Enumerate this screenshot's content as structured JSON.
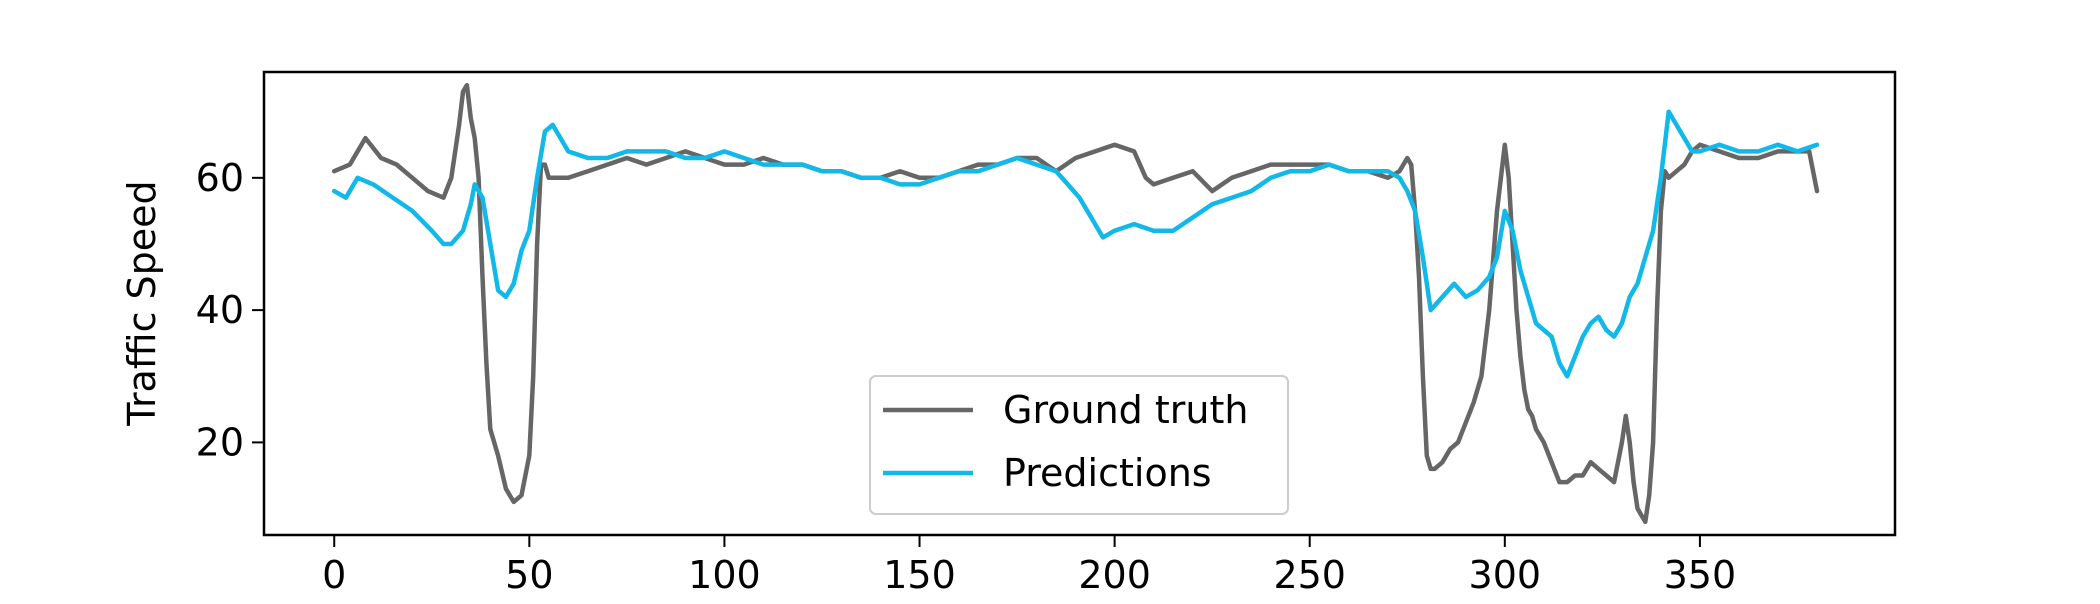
{
  "chart_data": {
    "type": "line",
    "title": "",
    "xlabel": "",
    "ylabel": "Traffic Speed",
    "xlim": [
      -18,
      400
    ],
    "ylim": [
      6,
      76
    ],
    "xticks": [
      0,
      50,
      100,
      150,
      200,
      250,
      300,
      350
    ],
    "yticks": [
      20,
      40,
      60
    ],
    "grid": false,
    "legend": {
      "placement": "lower center"
    },
    "series": [
      {
        "name": "Ground truth",
        "color": "#666666",
        "x": [
          0,
          4,
          8,
          12,
          16,
          20,
          24,
          28,
          30,
          32,
          33,
          34,
          35,
          36,
          37,
          38,
          39,
          40,
          42,
          44,
          46,
          48,
          50,
          51,
          52,
          53,
          54,
          55,
          56,
          60,
          65,
          70,
          75,
          80,
          85,
          90,
          95,
          100,
          105,
          110,
          115,
          120,
          125,
          130,
          135,
          140,
          145,
          150,
          155,
          160,
          165,
          170,
          175,
          180,
          185,
          190,
          195,
          200,
          205,
          208,
          210,
          215,
          220,
          225,
          230,
          235,
          240,
          245,
          250,
          255,
          260,
          265,
          270,
          273,
          275,
          276,
          277,
          278,
          279,
          280,
          281,
          282,
          284,
          286,
          288,
          290,
          292,
          294,
          296,
          298,
          299,
          300,
          301,
          302,
          303,
          304,
          305,
          306,
          307,
          308,
          310,
          312,
          314,
          316,
          318,
          320,
          322,
          324,
          326,
          328,
          330,
          331,
          332,
          333,
          334,
          335,
          336,
          337,
          338,
          339,
          340,
          341,
          342,
          344,
          346,
          348,
          350,
          355,
          360,
          365,
          370,
          375,
          378,
          380
        ],
        "values": [
          61,
          62,
          66,
          63,
          62,
          60,
          58,
          57,
          60,
          68,
          73,
          74,
          69,
          66,
          60,
          45,
          32,
          22,
          18,
          13,
          11,
          12,
          18,
          30,
          50,
          62,
          62,
          60,
          60,
          60,
          61,
          62,
          63,
          62,
          63,
          64,
          63,
          62,
          62,
          63,
          62,
          62,
          61,
          61,
          60,
          60,
          61,
          60,
          60,
          61,
          62,
          62,
          63,
          63,
          61,
          63,
          64,
          65,
          64,
          60,
          59,
          60,
          61,
          58,
          60,
          61,
          62,
          62,
          62,
          62,
          61,
          61,
          60,
          61,
          63,
          62,
          55,
          45,
          30,
          18,
          16,
          16,
          17,
          19,
          20,
          23,
          26,
          30,
          40,
          55,
          60,
          65,
          60,
          50,
          40,
          33,
          28,
          25,
          24,
          22,
          20,
          17,
          14,
          14,
          15,
          15,
          17,
          16,
          15,
          14,
          20,
          24,
          20,
          14,
          10,
          9,
          8,
          12,
          20,
          40,
          55,
          61,
          60,
          61,
          62,
          64,
          65,
          64,
          63,
          63,
          64,
          64,
          64,
          58
        ]
      },
      {
        "name": "Predictions",
        "color": "#12b8e8",
        "x": [
          0,
          3,
          6,
          10,
          15,
          20,
          25,
          28,
          30,
          33,
          35,
          36,
          38,
          40,
          42,
          44,
          46,
          48,
          50,
          52,
          54,
          56,
          60,
          65,
          70,
          75,
          80,
          85,
          90,
          95,
          100,
          105,
          110,
          115,
          120,
          125,
          130,
          135,
          140,
          145,
          150,
          155,
          160,
          165,
          170,
          175,
          180,
          185,
          188,
          191,
          194,
          197,
          200,
          205,
          210,
          215,
          220,
          225,
          230,
          235,
          240,
          245,
          250,
          255,
          260,
          265,
          270,
          273,
          275,
          277,
          279,
          281,
          284,
          287,
          290,
          293,
          296,
          298,
          300,
          302,
          304,
          306,
          308,
          310,
          312,
          314,
          316,
          318,
          320,
          322,
          324,
          326,
          328,
          330,
          332,
          334,
          336,
          338,
          340,
          342,
          344,
          346,
          348,
          350,
          355,
          360,
          365,
          370,
          375,
          380
        ],
        "values": [
          58,
          57,
          60,
          59,
          57,
          55,
          52,
          50,
          50,
          52,
          56,
          59,
          57,
          50,
          43,
          42,
          44,
          49,
          52,
          60,
          67,
          68,
          64,
          63,
          63,
          64,
          64,
          64,
          63,
          63,
          64,
          63,
          62,
          62,
          62,
          61,
          61,
          60,
          60,
          59,
          59,
          60,
          61,
          61,
          62,
          63,
          62,
          61,
          59,
          57,
          54,
          51,
          52,
          53,
          52,
          52,
          54,
          56,
          57,
          58,
          60,
          61,
          61,
          62,
          61,
          61,
          61,
          60,
          58,
          55,
          48,
          40,
          42,
          44,
          42,
          43,
          45,
          48,
          55,
          52,
          46,
          42,
          38,
          37,
          36,
          32,
          30,
          33,
          36,
          38,
          39,
          37,
          36,
          38,
          42,
          44,
          48,
          52,
          60,
          70,
          68,
          66,
          64,
          64,
          65,
          64,
          64,
          65,
          64,
          65
        ]
      }
    ]
  }
}
